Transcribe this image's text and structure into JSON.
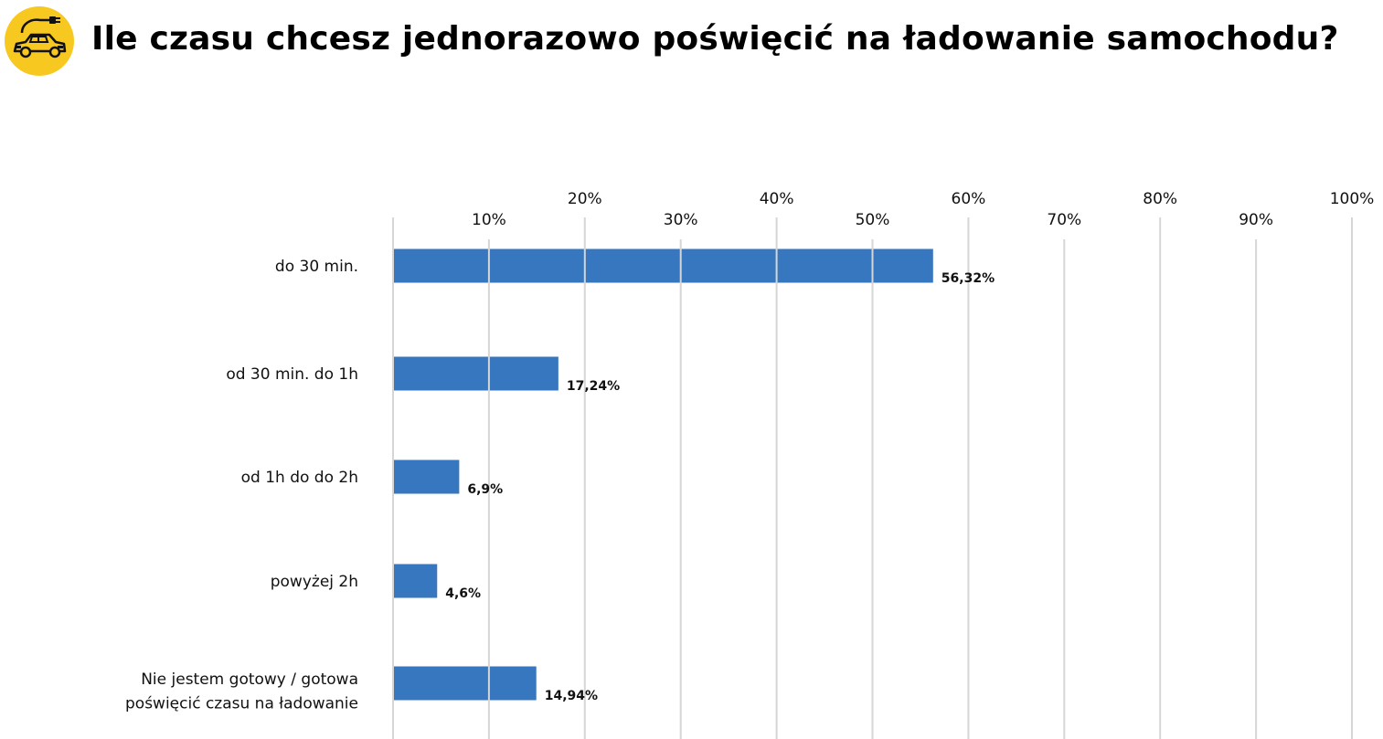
{
  "title": "Ile czasu chcesz jednorazowo poświęcić na ładowanie samochodu?",
  "logo_icon": "electric-car-plug-icon",
  "colors": {
    "bar": "#3777bf",
    "grid": "#d6d6d6",
    "logo_bg": "#f7c81f"
  },
  "chart_data": {
    "type": "bar",
    "orientation": "horizontal",
    "categories": [
      "do 30 min.",
      "od 30 min. do 1h",
      "od 1h do do 2h",
      "powyżej 2h",
      "Nie jestem gotowy / gotowa poświęcić czasu na ładowanie"
    ],
    "values": [
      56.32,
      17.24,
      6.9,
      4.6,
      14.94
    ],
    "value_labels": [
      "56,32%",
      "17,24%",
      "6,9%",
      "4,6%",
      "14,94%"
    ],
    "xlim": [
      0,
      100
    ],
    "ticks": [
      10,
      20,
      30,
      40,
      50,
      60,
      70,
      80,
      90,
      100
    ],
    "tick_labels": [
      "10%",
      "20%",
      "30%",
      "40%",
      "50%",
      "60%",
      "70%",
      "80%",
      "90%",
      "100%"
    ],
    "axis_position": "top",
    "grid": true
  }
}
